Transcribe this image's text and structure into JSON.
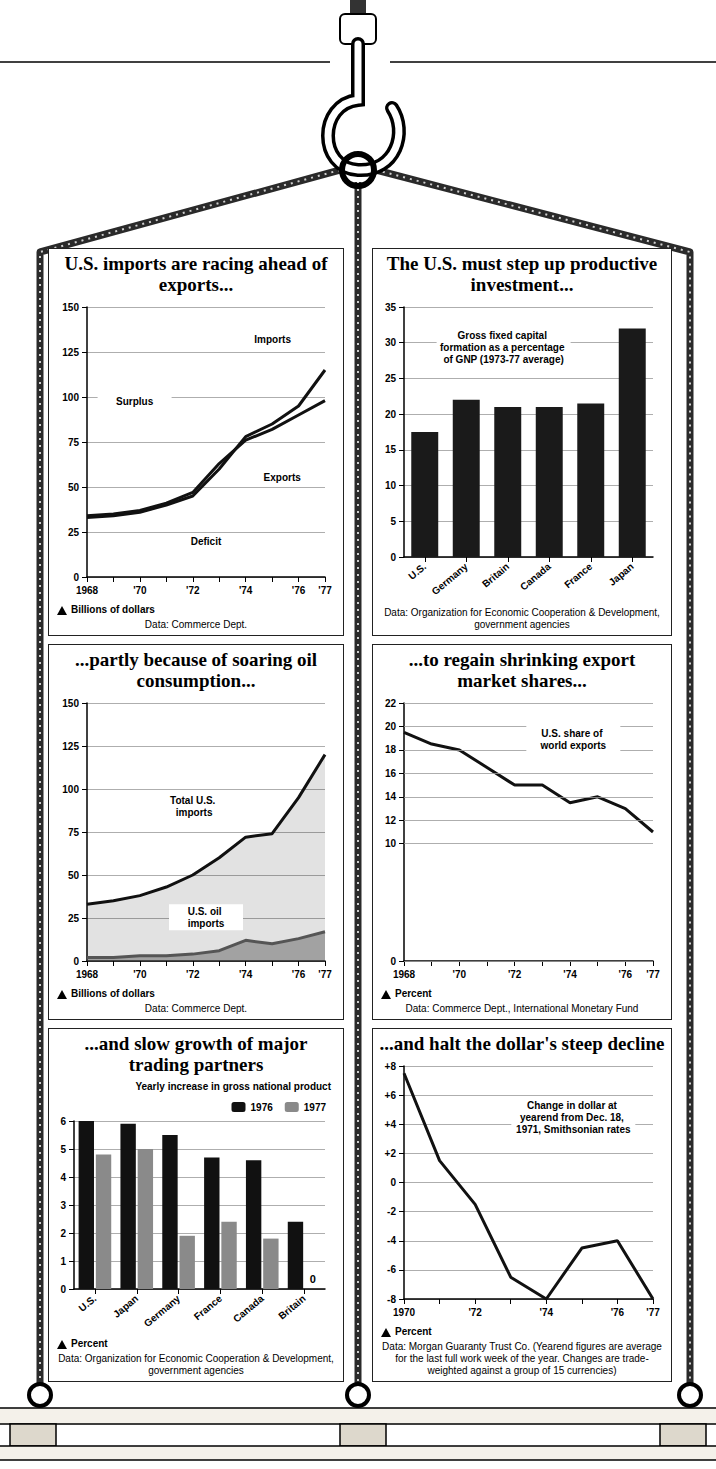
{
  "chart_data": [
    {
      "type": "line",
      "title": "U.S. imports are racing ahead of exports...",
      "categories": [
        "1968",
        null,
        "'70",
        null,
        "'72",
        null,
        "'74",
        null,
        "'76",
        "'77"
      ],
      "series": [
        {
          "name": "Imports",
          "color": "#111111",
          "values": [
            33,
            34,
            36,
            40,
            45,
            60,
            78,
            85,
            95,
            115
          ]
        },
        {
          "name": "Exports",
          "color": "#111111",
          "values": [
            34,
            35,
            37,
            41,
            47,
            63,
            76,
            82,
            90,
            98
          ]
        }
      ],
      "ylim": [
        0,
        150
      ],
      "yticks": [
        0,
        25,
        50,
        75,
        100,
        125,
        150
      ],
      "grid": true,
      "y_label": "Billions of dollars",
      "annotations": [
        "Surplus",
        "Deficit"
      ],
      "source": "Data: Commerce Dept."
    },
    {
      "type": "bar",
      "title": "The U.S. must step up productive investment...",
      "categories": [
        "U.S.",
        "Germany",
        "Britain",
        "Canada",
        "France",
        "Japan"
      ],
      "values": [
        17.5,
        22,
        21,
        21,
        21.5,
        32
      ],
      "color": "#1a1a1a",
      "ylim": [
        0,
        35
      ],
      "yticks": [
        0,
        5,
        10,
        15,
        20,
        25,
        30,
        35
      ],
      "grid": true,
      "annotations": [
        "Gross fixed capital formation as a percentage of GNP (1973-77 average)"
      ],
      "source": "Data: Organization for Economic Cooperation & Development, government agencies"
    },
    {
      "type": "line",
      "title": "...partly because of soaring oil consumption...",
      "categories": [
        "1968",
        null,
        "'70",
        null,
        "'72",
        null,
        "'74",
        null,
        "'76",
        "'77"
      ],
      "series": [
        {
          "name": "Total U.S. imports",
          "type": "area",
          "color": "#111111",
          "values": [
            33,
            35,
            38,
            43,
            50,
            60,
            72,
            74,
            95,
            120
          ]
        },
        {
          "name": "U.S. oil imports",
          "type": "area",
          "color": "#555555",
          "values": [
            2,
            2,
            3,
            3,
            4,
            6,
            12,
            10,
            13,
            17
          ]
        }
      ],
      "ylim": [
        0,
        150
      ],
      "yticks": [
        0,
        25,
        50,
        75,
        100,
        125,
        150
      ],
      "grid": true,
      "y_label": "Billions of dollars",
      "source": "Data: Commerce Dept."
    },
    {
      "type": "line",
      "title": "...to regain shrinking export market shares...",
      "categories": [
        "1968",
        null,
        "'70",
        null,
        "'72",
        null,
        "'74",
        null,
        "'76",
        "'77"
      ],
      "values": [
        19.5,
        18.5,
        18,
        16.5,
        15,
        15,
        13.5,
        14,
        13,
        11
      ],
      "color": "#111111",
      "ylim": [
        0,
        22
      ],
      "yticks": [
        0,
        10,
        12,
        14,
        16,
        18,
        20,
        22
      ],
      "grid": true,
      "y_label": "Percent",
      "annotations": [
        "U.S. share of world exports"
      ],
      "source": "Data: Commerce Dept., International Monetary Fund"
    },
    {
      "type": "bar",
      "title": "...and slow growth of major trading partners",
      "categories": [
        "U.S.",
        "Japan",
        "Germany",
        "France",
        "Canada",
        "Britain"
      ],
      "series": [
        {
          "name": "1976",
          "color": "#111111",
          "values": [
            6,
            5.9,
            5.5,
            4.7,
            4.6,
            2.4
          ]
        },
        {
          "name": "1977",
          "color": "#8a8a8a",
          "values": [
            4.8,
            5.0,
            1.9,
            2.4,
            1.8,
            0
          ]
        }
      ],
      "ylim": [
        0,
        6
      ],
      "yticks": [
        0,
        1,
        2,
        3,
        4,
        5,
        6
      ],
      "grid": true,
      "legend": "upper right",
      "y_label": "Percent",
      "annotations": [
        "Yearly increase in gross national product",
        {
          "text": "0",
          "category": "Britain",
          "series": "1977"
        }
      ],
      "source": "Data: Organization for Economic Cooperation & Development, government agencies"
    },
    {
      "type": "line",
      "title": "...and halt the dollar's steep decline",
      "categories": [
        "1970",
        null,
        "'72",
        null,
        "'74",
        null,
        "'76",
        "'77"
      ],
      "values": [
        7.5,
        1.5,
        -1.5,
        -6.5,
        -8,
        -4.5,
        -4,
        -8
      ],
      "color": "#111111",
      "ylim": [
        -8,
        8
      ],
      "yticks": [
        -8,
        -6,
        -4,
        -2,
        0,
        {
          "value": 2,
          "label": "+2"
        },
        {
          "value": 4,
          "label": "+4"
        },
        {
          "value": 6,
          "label": "+6"
        },
        {
          "value": 8,
          "label": "+8"
        }
      ],
      "grid": true,
      "y_label": "Percent",
      "annotations": [
        "Change in dollar at yearend from Dec. 18, 1971, Smithsonian rates"
      ],
      "source": "Data: Morgan Guaranty Trust Co. (Yearend figures are average for the last full work week of the year. Changes are trade-weighted against a group of 15 currencies)"
    }
  ]
}
